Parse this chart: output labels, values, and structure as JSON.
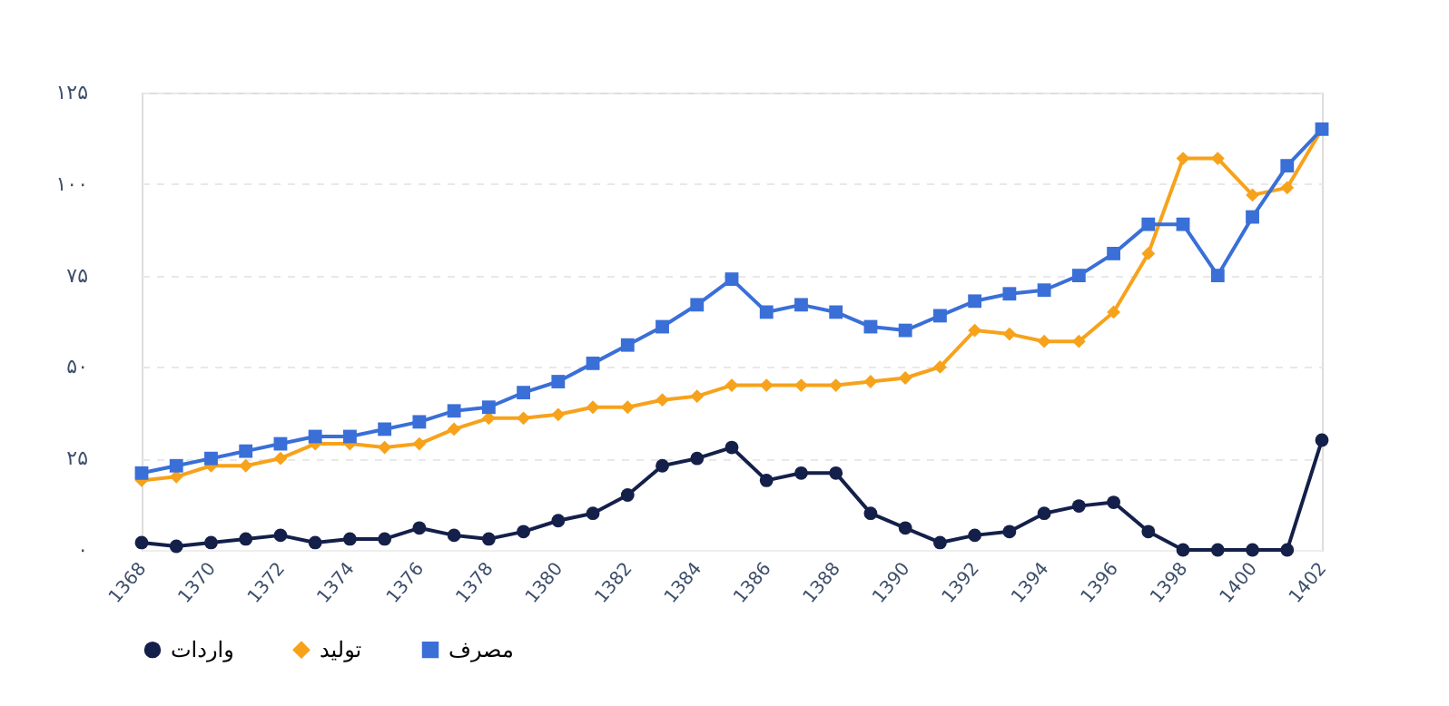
{
  "chart_data": {
    "type": "line",
    "x": [
      1368,
      1369,
      1370,
      1371,
      1372,
      1373,
      1374,
      1375,
      1376,
      1377,
      1378,
      1379,
      1380,
      1381,
      1382,
      1383,
      1384,
      1385,
      1386,
      1387,
      1388,
      1389,
      1390,
      1391,
      1392,
      1393,
      1394,
      1395,
      1396,
      1397,
      1398,
      1399,
      1400,
      1401,
      1402
    ],
    "series": [
      {
        "name": "واردات",
        "color": "#14204a",
        "marker": "circle",
        "values": [
          2,
          1,
          2,
          3,
          4,
          2,
          3,
          3,
          6,
          4,
          3,
          5,
          8,
          10,
          15,
          23,
          25,
          28,
          19,
          21,
          21,
          10,
          6,
          2,
          4,
          5,
          10,
          12,
          13,
          5,
          0,
          0,
          0,
          0,
          30
        ]
      },
      {
        "name": "تولید",
        "color": "#f7a21b",
        "marker": "diamond",
        "values": [
          19,
          20,
          23,
          23,
          25,
          29,
          29,
          28,
          29,
          33,
          36,
          36,
          37,
          39,
          39,
          41,
          42,
          45,
          45,
          45,
          45,
          46,
          47,
          50,
          60,
          59,
          57,
          57,
          65,
          81,
          107,
          107,
          97,
          99,
          115
        ]
      },
      {
        "name": "مصرف",
        "color": "#3a6fd8",
        "marker": "square",
        "values": [
          21,
          23,
          25,
          27,
          29,
          31,
          31,
          33,
          35,
          38,
          39,
          43,
          46,
          51,
          56,
          61,
          67,
          74,
          65,
          67,
          65,
          61,
          60,
          64,
          68,
          70,
          71,
          75,
          81,
          89,
          89,
          75,
          91,
          105,
          115
        ]
      }
    ],
    "xlim": [
      1368,
      1402
    ],
    "xticks": [
      1368,
      1370,
      1372,
      1374,
      1376,
      1378,
      1380,
      1382,
      1384,
      1386,
      1388,
      1390,
      1392,
      1394,
      1396,
      1398,
      1400,
      1402
    ],
    "ylim": [
      0,
      125
    ],
    "yticks": [
      {
        "value": 0,
        "label": "۰"
      },
      {
        "value": 25,
        "label": "۲۵"
      },
      {
        "value": 50,
        "label": "۵۰"
      },
      {
        "value": 75,
        "label": "۷۵"
      },
      {
        "value": 100,
        "label": "۱۰۰"
      },
      {
        "value": 125,
        "label": "۱۲۵"
      }
    ],
    "grid": "y",
    "legend": "bottom",
    "line_style": "solid"
  }
}
